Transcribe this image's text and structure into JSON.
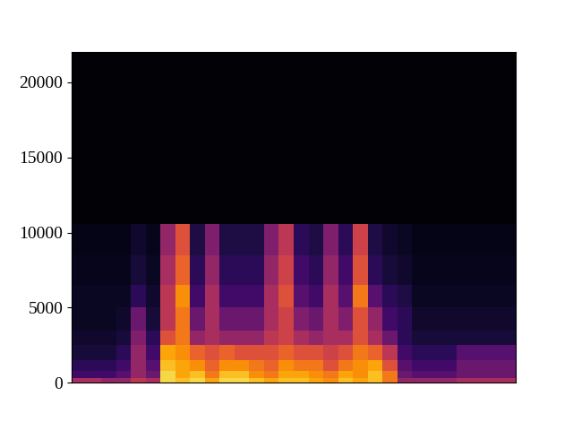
{
  "chart_data": {
    "type": "spectrogram",
    "ylim": [
      0,
      22050
    ],
    "yticks": [
      0,
      5000,
      10000,
      15000,
      20000
    ],
    "tick_labels": "y",
    "color": "inferno",
    "clim": [
      0,
      1
    ],
    "freq_edges": [
      0,
      300,
      800,
      1500,
      2500,
      3500,
      5000,
      6500,
      8500,
      10600,
      22050
    ],
    "cells": [
      [
        0.45,
        0.45,
        0.4,
        0.4,
        0.5,
        0.45,
        0.9,
        0.85,
        0.9,
        0.8,
        0.9,
        0.9,
        0.85,
        0.8,
        0.85,
        0.85,
        0.8,
        0.75,
        0.85,
        0.8,
        0.85,
        0.7,
        0.4,
        0.4,
        0.4,
        0.4,
        0.45,
        0.45,
        0.45,
        0.45
      ],
      [
        0.2,
        0.2,
        0.2,
        0.25,
        0.4,
        0.3,
        0.9,
        0.8,
        0.85,
        0.7,
        0.85,
        0.85,
        0.75,
        0.7,
        0.8,
        0.8,
        0.75,
        0.7,
        0.8,
        0.75,
        0.85,
        0.7,
        0.3,
        0.25,
        0.25,
        0.25,
        0.3,
        0.3,
        0.3,
        0.3
      ],
      [
        0.15,
        0.15,
        0.15,
        0.2,
        0.4,
        0.25,
        0.85,
        0.8,
        0.75,
        0.65,
        0.75,
        0.75,
        0.7,
        0.65,
        0.75,
        0.7,
        0.7,
        0.6,
        0.7,
        0.75,
        0.8,
        0.6,
        0.25,
        0.2,
        0.2,
        0.2,
        0.3,
        0.3,
        0.3,
        0.3
      ],
      [
        0.1,
        0.1,
        0.1,
        0.15,
        0.4,
        0.2,
        0.8,
        0.75,
        0.65,
        0.6,
        0.65,
        0.6,
        0.6,
        0.6,
        0.65,
        0.6,
        0.6,
        0.55,
        0.6,
        0.7,
        0.65,
        0.5,
        0.2,
        0.15,
        0.15,
        0.15,
        0.25,
        0.25,
        0.25,
        0.25
      ],
      [
        0.08,
        0.08,
        0.08,
        0.1,
        0.35,
        0.15,
        0.6,
        0.7,
        0.4,
        0.45,
        0.4,
        0.4,
        0.4,
        0.5,
        0.55,
        0.45,
        0.4,
        0.45,
        0.45,
        0.6,
        0.45,
        0.3,
        0.15,
        0.1,
        0.1,
        0.1,
        0.1,
        0.1,
        0.1,
        0.1
      ],
      [
        0.06,
        0.06,
        0.06,
        0.08,
        0.3,
        0.1,
        0.5,
        0.7,
        0.3,
        0.45,
        0.3,
        0.3,
        0.3,
        0.45,
        0.55,
        0.35,
        0.3,
        0.45,
        0.35,
        0.6,
        0.4,
        0.2,
        0.15,
        0.08,
        0.08,
        0.08,
        0.08,
        0.08,
        0.08,
        0.08
      ],
      [
        0.06,
        0.06,
        0.06,
        0.06,
        0.15,
        0.08,
        0.5,
        0.75,
        0.2,
        0.45,
        0.2,
        0.2,
        0.2,
        0.45,
        0.6,
        0.25,
        0.2,
        0.45,
        0.25,
        0.7,
        0.25,
        0.15,
        0.12,
        0.06,
        0.06,
        0.06,
        0.06,
        0.06,
        0.06,
        0.06
      ],
      [
        0.05,
        0.05,
        0.05,
        0.05,
        0.1,
        0.06,
        0.45,
        0.65,
        0.15,
        0.4,
        0.15,
        0.15,
        0.15,
        0.4,
        0.55,
        0.2,
        0.15,
        0.4,
        0.2,
        0.6,
        0.15,
        0.1,
        0.08,
        0.05,
        0.05,
        0.05,
        0.05,
        0.05,
        0.05,
        0.05
      ],
      [
        0.04,
        0.04,
        0.04,
        0.04,
        0.08,
        0.05,
        0.4,
        0.6,
        0.12,
        0.35,
        0.12,
        0.12,
        0.12,
        0.35,
        0.5,
        0.15,
        0.12,
        0.35,
        0.15,
        0.55,
        0.12,
        0.08,
        0.06,
        0.04,
        0.04,
        0.04,
        0.04,
        0.04,
        0.04,
        0.04
      ],
      [
        0.01,
        0.01,
        0.01,
        0.01,
        0.01,
        0.01,
        0.01,
        0.01,
        0.01,
        0.01,
        0.01,
        0.01,
        0.01,
        0.01,
        0.01,
        0.01,
        0.01,
        0.01,
        0.01,
        0.01,
        0.01,
        0.01,
        0.01,
        0.01,
        0.01,
        0.01,
        0.01,
        0.01,
        0.01,
        0.01
      ]
    ]
  }
}
